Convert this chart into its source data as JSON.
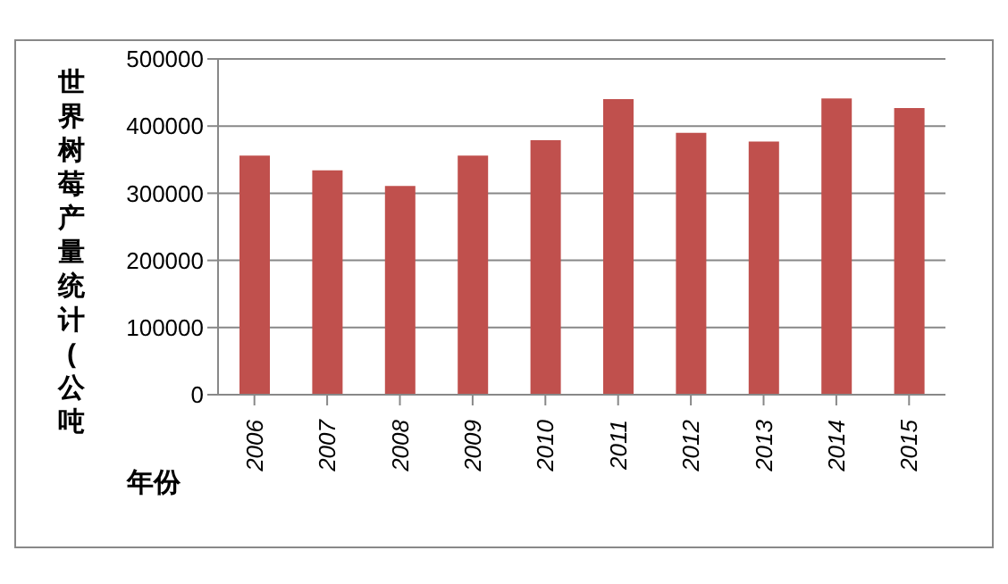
{
  "chart_data": {
    "type": "bar",
    "xlabel": "年份",
    "ylabel": "世界树莓产量统计(公吨",
    "categories": [
      "2006",
      "2007",
      "2008",
      "2009",
      "2010",
      "2011",
      "2012",
      "2013",
      "2014",
      "2015"
    ],
    "values": [
      356000,
      334000,
      311000,
      356000,
      379000,
      440000,
      390000,
      377000,
      441000,
      427000
    ],
    "color": "#c0504d",
    "ylim": [
      0,
      500000
    ],
    "yticks": [
      0,
      100000,
      200000,
      300000,
      400000,
      500000
    ],
    "grid": "y"
  }
}
